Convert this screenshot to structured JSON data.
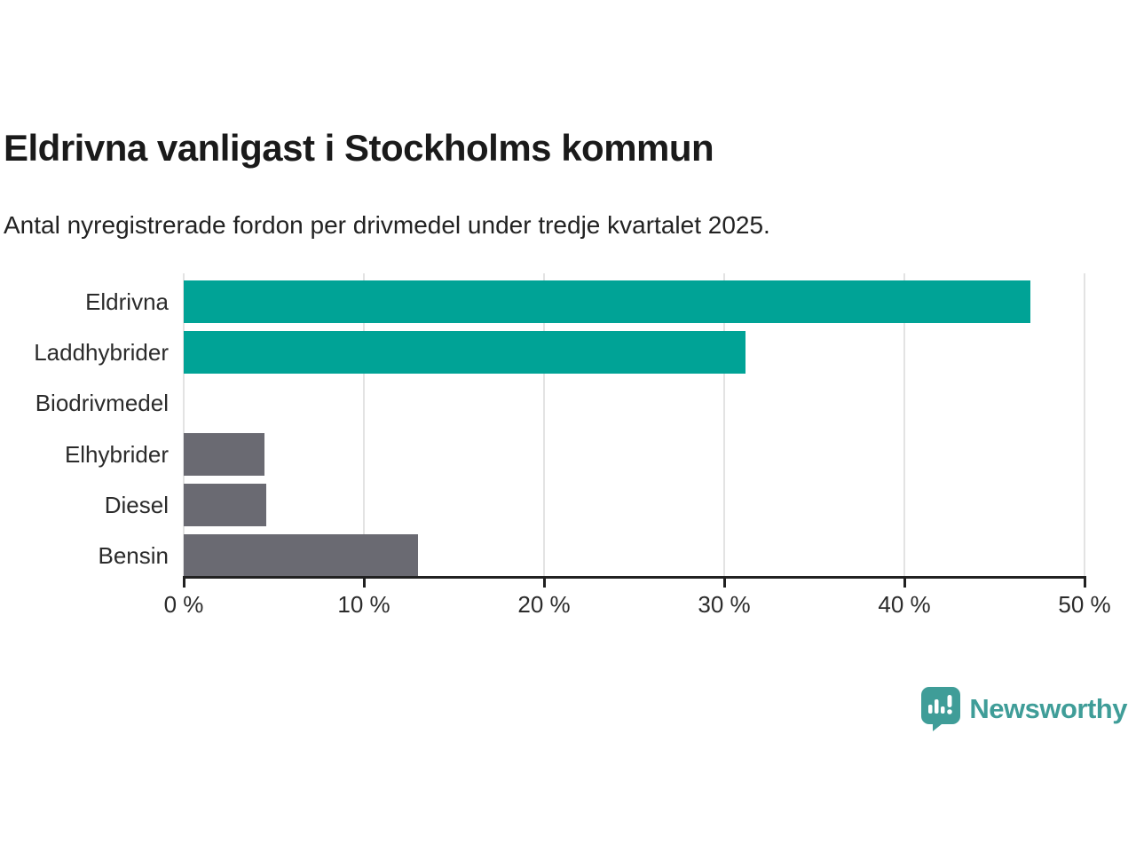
{
  "chart_data": {
    "type": "bar",
    "orientation": "horizontal",
    "title": "Eldrivna vanligast i Stockholms kommun",
    "subtitle": "Antal nyregistrerade fordon per drivmedel under tredje kvartalet 2025.",
    "categories": [
      "Eldrivna",
      "Laddhybrider",
      "Biodrivmedel",
      "Elhybrider",
      "Diesel",
      "Bensin"
    ],
    "values": [
      47,
      31.2,
      0,
      4.5,
      4.6,
      13
    ],
    "unit": "%",
    "xlabel": "",
    "ylabel": "",
    "xlim": [
      0,
      50
    ],
    "xticks": [
      0,
      10,
      20,
      30,
      40,
      50
    ],
    "xtick_labels": [
      "0 %",
      "10 %",
      "20 %",
      "30 %",
      "40 %",
      "50 %"
    ],
    "bar_colors": [
      "#00a396",
      "#00a396",
      "#00a396",
      "#6a6a72",
      "#6a6a72",
      "#6a6a72"
    ],
    "grid": true,
    "legend": "none"
  },
  "colors": {
    "teal_bar": "#00a396",
    "gray_bar": "#6a6a72",
    "gridline": "#e3e3e3",
    "axis": "#212121",
    "brand_teal": "#3f9d98"
  },
  "branding": {
    "logo_text": "Newsworthy",
    "logo_icon": "newsworthy-chart-bubble-icon"
  }
}
